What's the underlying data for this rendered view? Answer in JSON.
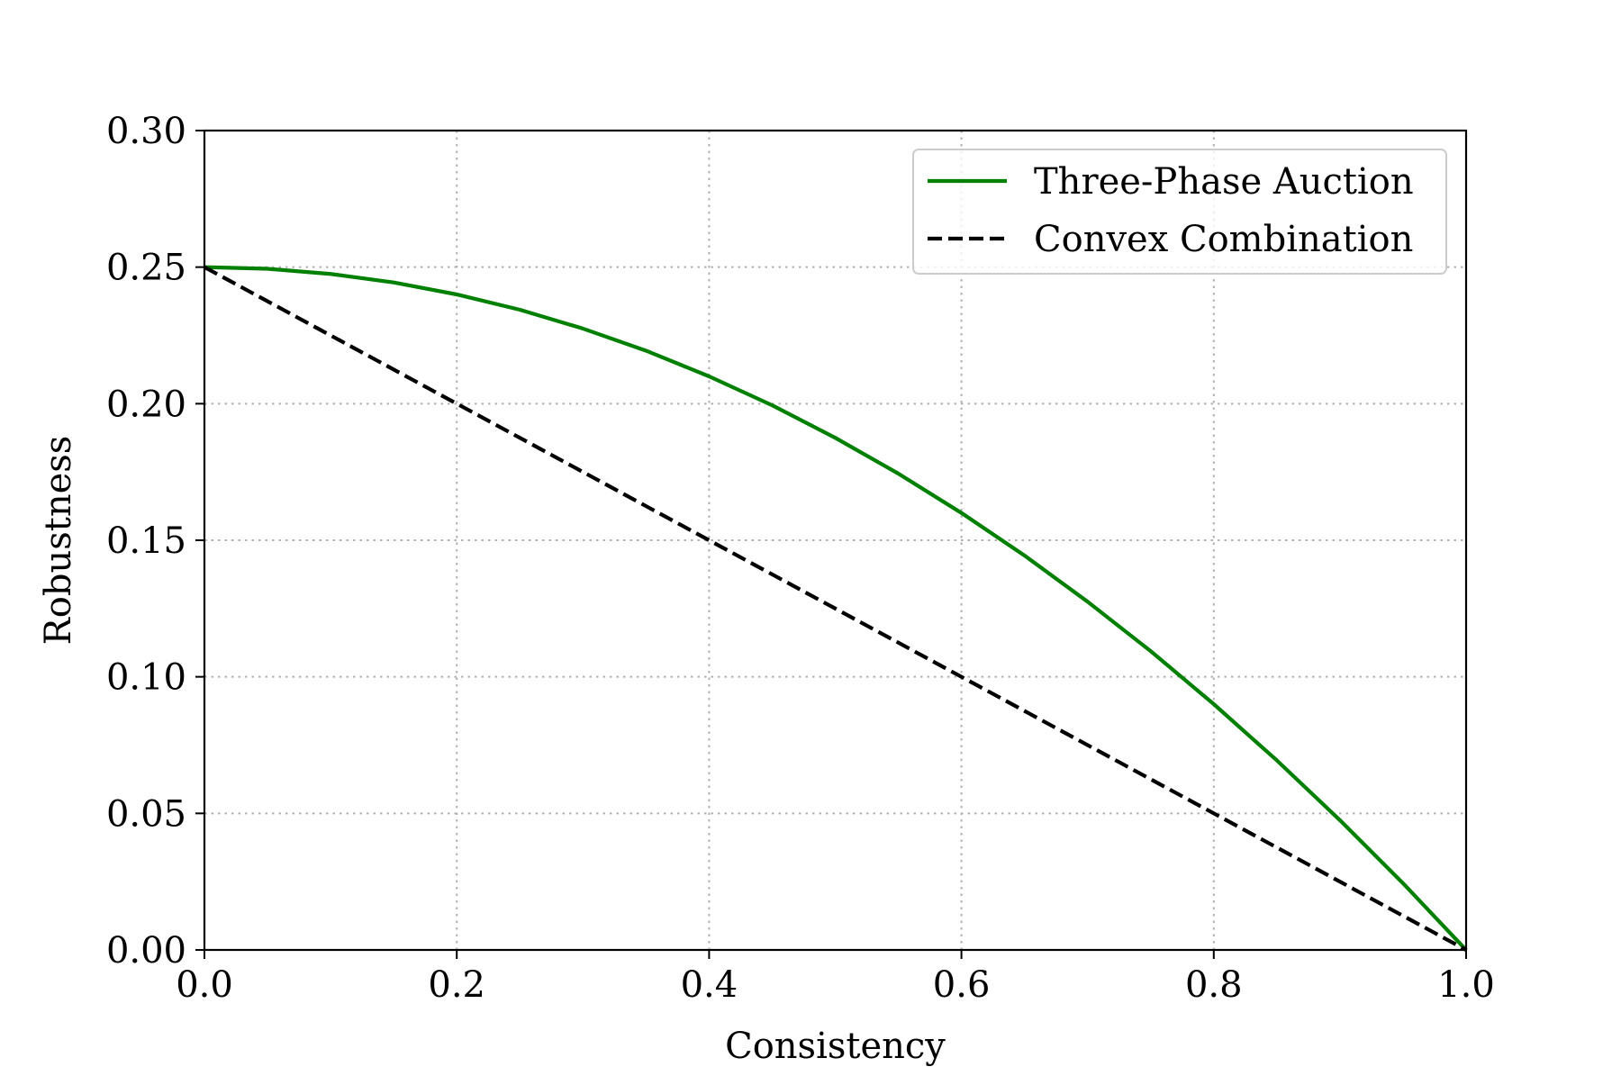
{
  "chart_data": {
    "type": "line",
    "title": "",
    "xlabel": "Consistency",
    "ylabel": "Robustness",
    "xlim": [
      0.0,
      1.0
    ],
    "ylim": [
      0.0,
      0.3
    ],
    "xticks": [
      0.0,
      0.2,
      0.4,
      0.6,
      0.8,
      1.0
    ],
    "xtick_labels": [
      "0.0",
      "0.2",
      "0.4",
      "0.6",
      "0.8",
      "1.0"
    ],
    "yticks": [
      0.0,
      0.05,
      0.1,
      0.15,
      0.2,
      0.25,
      0.3
    ],
    "ytick_labels": [
      "0.00",
      "0.05",
      "0.10",
      "0.15",
      "0.20",
      "0.25",
      "0.30"
    ],
    "grid": true,
    "legend_position": "top-right",
    "series": [
      {
        "name": "Three-Phase Auction",
        "color": "#008000",
        "style": "solid",
        "x": [
          0.0,
          0.05,
          0.1,
          0.15,
          0.2,
          0.25,
          0.3,
          0.35,
          0.4,
          0.45,
          0.5,
          0.55,
          0.6,
          0.65,
          0.7,
          0.75,
          0.8,
          0.85,
          0.9,
          0.95,
          1.0
        ],
        "y": [
          0.25,
          0.2494,
          0.2475,
          0.2444,
          0.24,
          0.2344,
          0.2275,
          0.2194,
          0.21,
          0.1994,
          0.1875,
          0.1744,
          0.16,
          0.1444,
          0.1275,
          0.1094,
          0.09,
          0.0694,
          0.0475,
          0.0244,
          0.0
        ]
      },
      {
        "name": "Convex Combination",
        "color": "#000000",
        "style": "dashed",
        "x": [
          0.0,
          0.2,
          0.4,
          0.6,
          0.8,
          1.0
        ],
        "y": [
          0.25,
          0.2,
          0.15,
          0.1,
          0.05,
          0.0
        ]
      }
    ]
  }
}
